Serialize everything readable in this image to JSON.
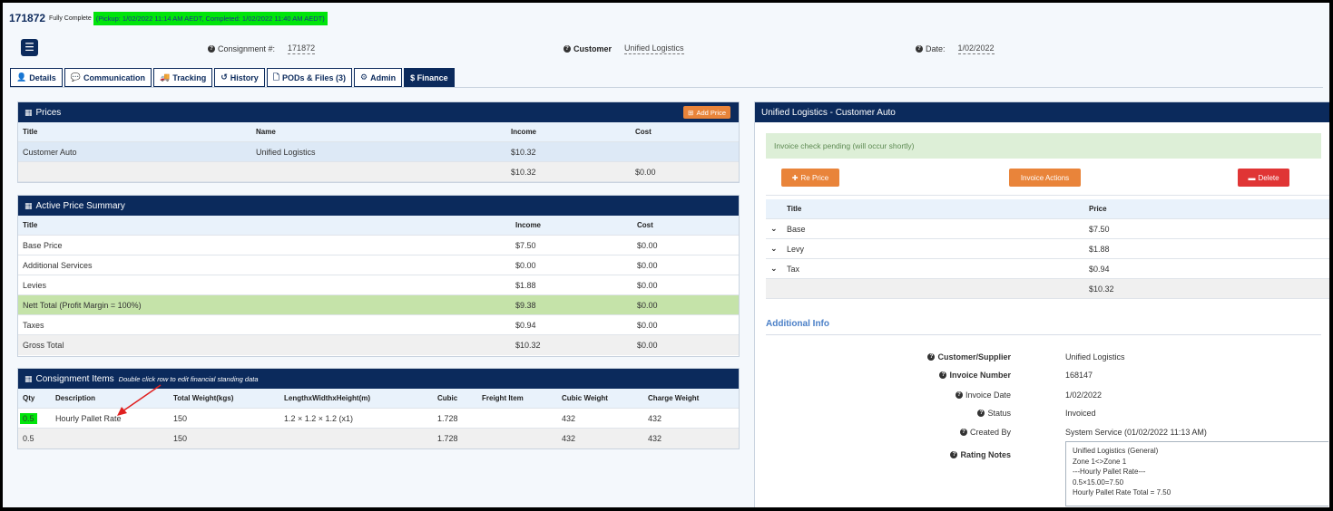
{
  "header": {
    "consignment_id": "171872",
    "state": "Fully Complete",
    "times": "(Pickup: 1/02/2022 11:14 AM AEDT, Completed: 1/02/2022 11:40 AM AEDT)"
  },
  "meta": {
    "consignment_label": "Consignment #:",
    "consignment_value": "171872",
    "customer_label": "Customer",
    "customer_value": "Unified Logistics",
    "date_label": "Date:",
    "date_value": "1/02/2022"
  },
  "tabs": [
    {
      "label": "Details",
      "icon": "user-icon"
    },
    {
      "label": "Communication",
      "icon": "chat-icon"
    },
    {
      "label": "Tracking",
      "icon": "truck-icon"
    },
    {
      "label": "History",
      "icon": "history-icon"
    },
    {
      "label": "PODs & Files (3)",
      "icon": "file-icon"
    },
    {
      "label": "Admin",
      "icon": "gear-icon"
    },
    {
      "label": "$ Finance",
      "icon": "",
      "active": true
    }
  ],
  "prices": {
    "title": "Prices",
    "add_label": "Add Price",
    "columns": [
      "Title",
      "Name",
      "Income",
      "Cost"
    ],
    "rows": [
      {
        "title": "Customer Auto",
        "name": "Unified Logistics",
        "income": "$10.32",
        "cost": ""
      }
    ],
    "total": {
      "income": "$10.32",
      "cost": "$0.00"
    }
  },
  "summary": {
    "title": "Active Price Summary",
    "columns": [
      "Title",
      "Income",
      "Cost"
    ],
    "rows": [
      {
        "title": "Base Price",
        "income": "$7.50",
        "cost": "$0.00"
      },
      {
        "title": "Additional Services",
        "income": "$0.00",
        "cost": "$0.00"
      },
      {
        "title": "Levies",
        "income": "$1.88",
        "cost": "$0.00"
      },
      {
        "title": "Nett Total (Profit Margin = 100%)",
        "income": "$9.38",
        "cost": "$0.00"
      },
      {
        "title": "Taxes",
        "income": "$0.94",
        "cost": "$0.00"
      },
      {
        "title": "Gross Total",
        "income": "$10.32",
        "cost": "$0.00"
      }
    ]
  },
  "items": {
    "title": "Consignment Items",
    "note": "Double click row to edit financial standing data",
    "columns": [
      "Qty",
      "Description",
      "Total Weight(kgs)",
      "LengthxWidthxHeight(m)",
      "Cubic",
      "Freight Item",
      "Cubic Weight",
      "Charge Weight"
    ],
    "rows": [
      {
        "qty": "0.5",
        "description": "Hourly Pallet Rate",
        "weight": "150",
        "dims": "1.2 × 1.2 × 1.2 (x1)",
        "cubic": "1.728",
        "freight": "",
        "cubic_weight": "432",
        "charge_weight": "432"
      }
    ],
    "total": {
      "qty": "0.5",
      "weight": "150",
      "cubic": "1.728",
      "cubic_weight": "432",
      "charge_weight": "432"
    }
  },
  "invoice": {
    "title": "Unified Logistics - Customer Auto",
    "pending": "Invoice check pending (will occur shortly)",
    "reprice_label": "Re Price",
    "actions_label": "Invoice Actions",
    "delete_label": "Delete",
    "columns": [
      "Title",
      "Price"
    ],
    "rows": [
      {
        "title": "Base",
        "price": "$7.50"
      },
      {
        "title": "Levy",
        "price": "$1.88"
      },
      {
        "title": "Tax",
        "price": "$0.94"
      }
    ],
    "total": "$10.32"
  },
  "additional": {
    "heading": "Additional Info",
    "fields": [
      {
        "label": "Customer/Supplier",
        "value": "Unified Logistics",
        "bold": true
      },
      {
        "label": "Invoice Number",
        "value": "168147",
        "bold": true
      },
      {
        "label": "Invoice Date",
        "value": "1/02/2022",
        "bold": false
      },
      {
        "label": "Status",
        "value": "Invoiced",
        "bold": false
      },
      {
        "label": "Created By",
        "value": "System Service (01/02/2022 11:13 AM)",
        "bold": false
      }
    ],
    "rating_label": "Rating Notes",
    "rating_notes": [
      "Unified Logistics (General)",
      "Zone 1<>Zone 1",
      "---Hourly Pallet Rate---",
      "0.5×15.00=7.50",
      "Hourly Pallet Rate Total = 7.50"
    ]
  },
  "colors": {
    "navy": "#0b2a5c",
    "highlight_green": "#00e50b",
    "orange": "#e9843a",
    "red": "#e03535",
    "nett_green": "#c5e3a9"
  }
}
